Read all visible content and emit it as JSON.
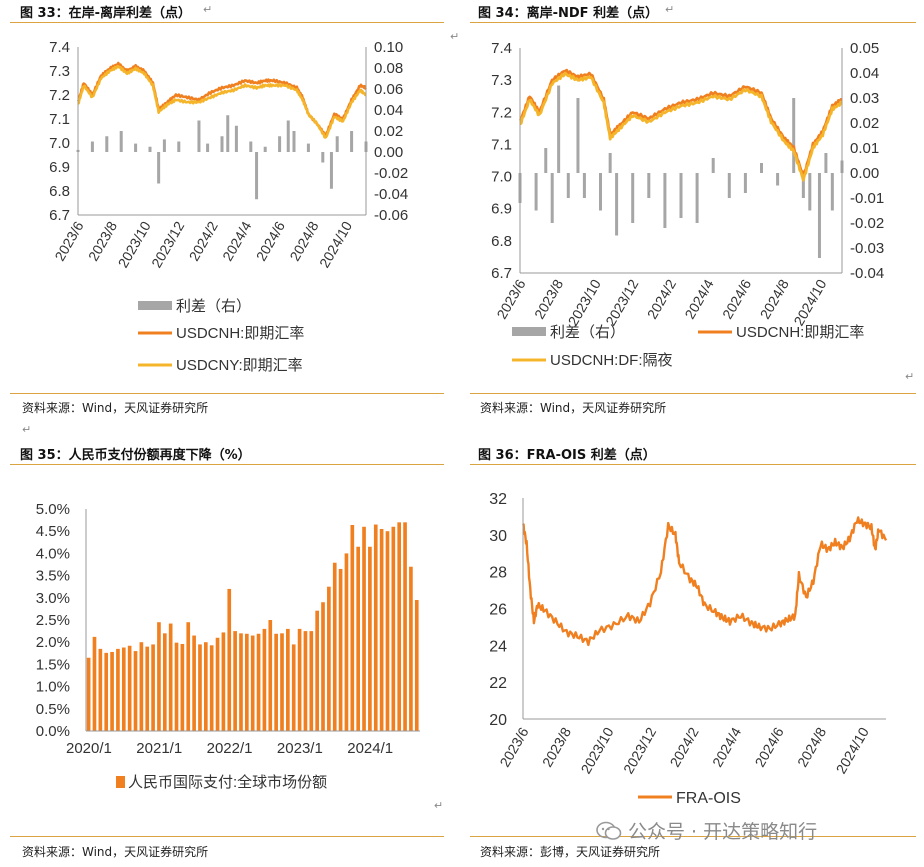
{
  "return_mark": "↵",
  "figures": [
    {
      "title": "图 33：在岸-离岸利差（点）",
      "source": "资料来源：Wind，天风证券研究所"
    },
    {
      "title": "图 34：离岸-NDF 利差（点）",
      "source": "资料来源：Wind，天风证券研究所"
    },
    {
      "title": "图 35：人民币支付份额再度下降（%）",
      "source": "资料来源：Wind，天风证券研究所"
    },
    {
      "title": "图 36：FRA-OIS 利差（点）",
      "source": "资料来源：彭博，天风证券研究所"
    }
  ],
  "watermark": "公众号 · 开达策略知行",
  "colors": {
    "orange": "#f07f20",
    "gold": "#f5b52a",
    "gray": "#a6a6a6",
    "rule": "#d9a441"
  },
  "chart_data": [
    {
      "type": "line",
      "x_ticks": [
        "2023/6",
        "2023/8",
        "2023/10",
        "2023/12",
        "2024/2",
        "2024/4",
        "2024/6",
        "2024/8",
        "2024/10"
      ],
      "ylim": [
        6.7,
        7.4
      ],
      "y_ticks": [
        "7.4",
        "7.3",
        "7.2",
        "7.1",
        "7.0",
        "6.9",
        "6.8",
        "6.7"
      ],
      "y2lim": [
        -0.06,
        0.1
      ],
      "y2_ticks": [
        "0.10",
        "0.08",
        "0.06",
        "0.04",
        "0.02",
        "0.00",
        "-0.02",
        "-0.04",
        "-0.06"
      ],
      "series": [
        {
          "name": "利差（右）",
          "type": "bar",
          "axis": "right",
          "color": "#a6a6a6",
          "points": [
            [
              0,
              0.002
            ],
            [
              0.05,
              0.01
            ],
            [
              0.1,
              0.015
            ],
            [
              0.15,
              0.02
            ],
            [
              0.2,
              0.008
            ],
            [
              0.25,
              0.005
            ],
            [
              0.28,
              -0.03
            ],
            [
              0.3,
              0.012
            ],
            [
              0.35,
              0.01
            ],
            [
              0.42,
              0.03
            ],
            [
              0.45,
              0.008
            ],
            [
              0.5,
              0.015
            ],
            [
              0.52,
              0.035
            ],
            [
              0.55,
              0.025
            ],
            [
              0.6,
              0.01
            ],
            [
              0.62,
              -0.045
            ],
            [
              0.65,
              0.005
            ],
            [
              0.7,
              0.015
            ],
            [
              0.73,
              0.03
            ],
            [
              0.75,
              0.02
            ],
            [
              0.8,
              0.008
            ],
            [
              0.85,
              -0.01
            ],
            [
              0.88,
              -0.035
            ],
            [
              0.9,
              0.015
            ],
            [
              0.95,
              0.02
            ],
            [
              1.0,
              0.01
            ]
          ]
        },
        {
          "name": "USDCNH:即期汇率",
          "type": "line",
          "axis": "left",
          "color": "#f07f20",
          "points": [
            [
              0,
              7.17
            ],
            [
              0.02,
              7.25
            ],
            [
              0.05,
              7.2
            ],
            [
              0.08,
              7.28
            ],
            [
              0.11,
              7.31
            ],
            [
              0.14,
              7.33
            ],
            [
              0.17,
              7.3
            ],
            [
              0.2,
              7.32
            ],
            [
              0.23,
              7.3
            ],
            [
              0.26,
              7.25
            ],
            [
              0.28,
              7.14
            ],
            [
              0.31,
              7.17
            ],
            [
              0.34,
              7.2
            ],
            [
              0.38,
              7.19
            ],
            [
              0.42,
              7.18
            ],
            [
              0.46,
              7.21
            ],
            [
              0.5,
              7.23
            ],
            [
              0.54,
              7.24
            ],
            [
              0.58,
              7.26
            ],
            [
              0.62,
              7.25
            ],
            [
              0.65,
              7.26
            ],
            [
              0.68,
              7.26
            ],
            [
              0.72,
              7.25
            ],
            [
              0.76,
              7.23
            ],
            [
              0.78,
              7.19
            ],
            [
              0.8,
              7.12
            ],
            [
              0.83,
              7.08
            ],
            [
              0.86,
              7.03
            ],
            [
              0.89,
              7.12
            ],
            [
              0.92,
              7.1
            ],
            [
              0.95,
              7.18
            ],
            [
              0.98,
              7.24
            ],
            [
              1.0,
              7.23
            ]
          ]
        },
        {
          "name": "USDCNY:即期汇率",
          "type": "line",
          "axis": "left",
          "color": "#f5b52a",
          "points": [
            [
              0,
              7.16
            ],
            [
              0.02,
              7.24
            ],
            [
              0.05,
              7.19
            ],
            [
              0.08,
              7.27
            ],
            [
              0.11,
              7.3
            ],
            [
              0.14,
              7.32
            ],
            [
              0.17,
              7.29
            ],
            [
              0.2,
              7.31
            ],
            [
              0.23,
              7.29
            ],
            [
              0.26,
              7.24
            ],
            [
              0.28,
              7.13
            ],
            [
              0.31,
              7.16
            ],
            [
              0.34,
              7.18
            ],
            [
              0.38,
              7.17
            ],
            [
              0.42,
              7.17
            ],
            [
              0.46,
              7.19
            ],
            [
              0.5,
              7.21
            ],
            [
              0.54,
              7.22
            ],
            [
              0.58,
              7.24
            ],
            [
              0.62,
              7.23
            ],
            [
              0.65,
              7.24
            ],
            [
              0.68,
              7.24
            ],
            [
              0.72,
              7.24
            ],
            [
              0.76,
              7.22
            ],
            [
              0.78,
              7.18
            ],
            [
              0.8,
              7.12
            ],
            [
              0.83,
              7.08
            ],
            [
              0.86,
              7.02
            ],
            [
              0.89,
              7.11
            ],
            [
              0.92,
              7.09
            ],
            [
              0.95,
              7.17
            ],
            [
              0.98,
              7.22
            ],
            [
              1.0,
              7.2
            ]
          ]
        }
      ]
    },
    {
      "type": "line",
      "x_ticks": [
        "2023/6",
        "2023/8",
        "2023/10",
        "2023/12",
        "2024/2",
        "2024/4",
        "2024/6",
        "2024/8",
        "2024/10"
      ],
      "ylim": [
        6.7,
        7.4
      ],
      "y_ticks": [
        "7.4",
        "7.3",
        "7.2",
        "7.1",
        "7.0",
        "6.9",
        "6.8",
        "6.7"
      ],
      "y2lim": [
        -0.04,
        0.05
      ],
      "y2_ticks": [
        "0.05",
        "0.04",
        "0.03",
        "0.02",
        "0.01",
        "0.00",
        "-0.01",
        "-0.02",
        "-0.03",
        "-0.04"
      ],
      "series": [
        {
          "name": "利差（右）",
          "type": "bar",
          "axis": "right",
          "color": "#a6a6a6",
          "points": [
            [
              0,
              -0.012
            ],
            [
              0.05,
              -0.015
            ],
            [
              0.08,
              0.01
            ],
            [
              0.1,
              -0.02
            ],
            [
              0.12,
              0.035
            ],
            [
              0.15,
              -0.01
            ],
            [
              0.18,
              0.03
            ],
            [
              0.2,
              -0.01
            ],
            [
              0.25,
              -0.015
            ],
            [
              0.28,
              0.008
            ],
            [
              0.3,
              -0.025
            ],
            [
              0.35,
              -0.02
            ],
            [
              0.4,
              -0.01
            ],
            [
              0.45,
              -0.022
            ],
            [
              0.5,
              -0.018
            ],
            [
              0.55,
              -0.02
            ],
            [
              0.6,
              0.006
            ],
            [
              0.65,
              -0.01
            ],
            [
              0.7,
              -0.008
            ],
            [
              0.75,
              0.004
            ],
            [
              0.8,
              -0.005
            ],
            [
              0.85,
              0.03
            ],
            [
              0.88,
              -0.01
            ],
            [
              0.9,
              -0.015
            ],
            [
              0.93,
              -0.034
            ],
            [
              0.95,
              0.008
            ],
            [
              0.97,
              -0.015
            ],
            [
              1.0,
              0.005
            ]
          ]
        },
        {
          "name": "USDCNH:即期汇率",
          "type": "line",
          "axis": "left",
          "color": "#f07f20",
          "points": [
            [
              0,
              7.17
            ],
            [
              0.03,
              7.25
            ],
            [
              0.06,
              7.2
            ],
            [
              0.1,
              7.3
            ],
            [
              0.14,
              7.33
            ],
            [
              0.18,
              7.31
            ],
            [
              0.22,
              7.32
            ],
            [
              0.26,
              7.24
            ],
            [
              0.28,
              7.13
            ],
            [
              0.31,
              7.16
            ],
            [
              0.35,
              7.2
            ],
            [
              0.4,
              7.18
            ],
            [
              0.45,
              7.21
            ],
            [
              0.5,
              7.23
            ],
            [
              0.55,
              7.24
            ],
            [
              0.6,
              7.26
            ],
            [
              0.65,
              7.25
            ],
            [
              0.7,
              7.28
            ],
            [
              0.75,
              7.26
            ],
            [
              0.78,
              7.18
            ],
            [
              0.82,
              7.12
            ],
            [
              0.85,
              7.09
            ],
            [
              0.88,
              7.0
            ],
            [
              0.91,
              7.1
            ],
            [
              0.94,
              7.14
            ],
            [
              0.97,
              7.22
            ],
            [
              1.0,
              7.24
            ]
          ]
        },
        {
          "name": "USDCNH:DF:隔夜",
          "type": "line",
          "axis": "left",
          "color": "#f5b52a",
          "points": [
            [
              0,
              7.16
            ],
            [
              0.03,
              7.24
            ],
            [
              0.06,
              7.19
            ],
            [
              0.1,
              7.29
            ],
            [
              0.14,
              7.32
            ],
            [
              0.18,
              7.3
            ],
            [
              0.22,
              7.31
            ],
            [
              0.26,
              7.23
            ],
            [
              0.28,
              7.12
            ],
            [
              0.31,
              7.15
            ],
            [
              0.35,
              7.19
            ],
            [
              0.4,
              7.17
            ],
            [
              0.45,
              7.2
            ],
            [
              0.5,
              7.22
            ],
            [
              0.55,
              7.23
            ],
            [
              0.6,
              7.25
            ],
            [
              0.65,
              7.24
            ],
            [
              0.7,
              7.27
            ],
            [
              0.75,
              7.25
            ],
            [
              0.78,
              7.17
            ],
            [
              0.82,
              7.11
            ],
            [
              0.85,
              7.08
            ],
            [
              0.88,
              6.99
            ],
            [
              0.91,
              7.09
            ],
            [
              0.94,
              7.13
            ],
            [
              0.97,
              7.21
            ],
            [
              1.0,
              7.23
            ]
          ]
        }
      ]
    },
    {
      "type": "bar",
      "x_ticks": [
        "2020/1",
        "2021/1",
        "2022/1",
        "2023/1",
        "2024/1"
      ],
      "ylim": [
        0,
        5
      ],
      "y_ticks": [
        "5.0%",
        "4.5%",
        "4.0%",
        "3.5%",
        "3.0%",
        "2.5%",
        "2.0%",
        "1.5%",
        "1.0%",
        "0.5%",
        "0.0%"
      ],
      "series": [
        {
          "name": "人民币国际支付:全球市场份额",
          "color": "#f07f20",
          "values": [
            1.65,
            2.12,
            1.85,
            1.76,
            1.78,
            1.85,
            1.88,
            1.92,
            1.8,
            2.0,
            1.9,
            1.95,
            2.45,
            2.2,
            2.42,
            1.99,
            1.96,
            2.45,
            2.15,
            1.95,
            2.0,
            1.93,
            2.1,
            2.22,
            3.2,
            2.25,
            2.2,
            2.19,
            2.15,
            2.19,
            2.3,
            2.5,
            2.19,
            2.2,
            2.3,
            1.95,
            2.3,
            2.25,
            2.25,
            2.71,
            2.9,
            3.25,
            3.79,
            3.65,
            4.0,
            4.64,
            4.15,
            4.6,
            4.15,
            4.65,
            4.55,
            4.5,
            4.6,
            4.7,
            4.7,
            3.7,
            2.95
          ]
        }
      ]
    },
    {
      "type": "line",
      "x_ticks": [
        "2023/6",
        "2023/8",
        "2023/10",
        "2023/12",
        "2024/2",
        "2024/4",
        "2024/6",
        "2024/8",
        "2024/10"
      ],
      "ylim": [
        20,
        32
      ],
      "y_ticks": [
        "32",
        "30",
        "28",
        "26",
        "24",
        "22",
        "20"
      ],
      "series": [
        {
          "name": "FRA-OIS",
          "color": "#f07f20",
          "points": [
            [
              0,
              30.6
            ],
            [
              0.01,
              29.5
            ],
            [
              0.02,
              27
            ],
            [
              0.03,
              25.3
            ],
            [
              0.04,
              26.2
            ],
            [
              0.06,
              25.9
            ],
            [
              0.09,
              25.3
            ],
            [
              0.12,
              24.7
            ],
            [
              0.15,
              24.5
            ],
            [
              0.18,
              24.2
            ],
            [
              0.21,
              24.8
            ],
            [
              0.25,
              25.1
            ],
            [
              0.29,
              25.6
            ],
            [
              0.32,
              25.3
            ],
            [
              0.35,
              26.3
            ],
            [
              0.38,
              28
            ],
            [
              0.4,
              30.5
            ],
            [
              0.42,
              30
            ],
            [
              0.43,
              28.5
            ],
            [
              0.46,
              27.6
            ],
            [
              0.48,
              27.2
            ],
            [
              0.5,
              26.2
            ],
            [
              0.53,
              25.8
            ],
            [
              0.55,
              25.5
            ],
            [
              0.57,
              25.3
            ],
            [
              0.6,
              25.6
            ],
            [
              0.63,
              25.2
            ],
            [
              0.65,
              25
            ],
            [
              0.68,
              24.9
            ],
            [
              0.71,
              25.2
            ],
            [
              0.73,
              25.4
            ],
            [
              0.75,
              25.6
            ],
            [
              0.76,
              27.8
            ],
            [
              0.78,
              26.6
            ],
            [
              0.8,
              27.5
            ],
            [
              0.82,
              29.5
            ],
            [
              0.84,
              29.2
            ],
            [
              0.86,
              29.6
            ],
            [
              0.88,
              29.3
            ],
            [
              0.9,
              29.8
            ],
            [
              0.92,
              30.8
            ],
            [
              0.94,
              30.6
            ],
            [
              0.96,
              30.4
            ],
            [
              0.97,
              29.2
            ],
            [
              0.98,
              30.3
            ],
            [
              1.0,
              29.7
            ]
          ]
        }
      ]
    }
  ]
}
